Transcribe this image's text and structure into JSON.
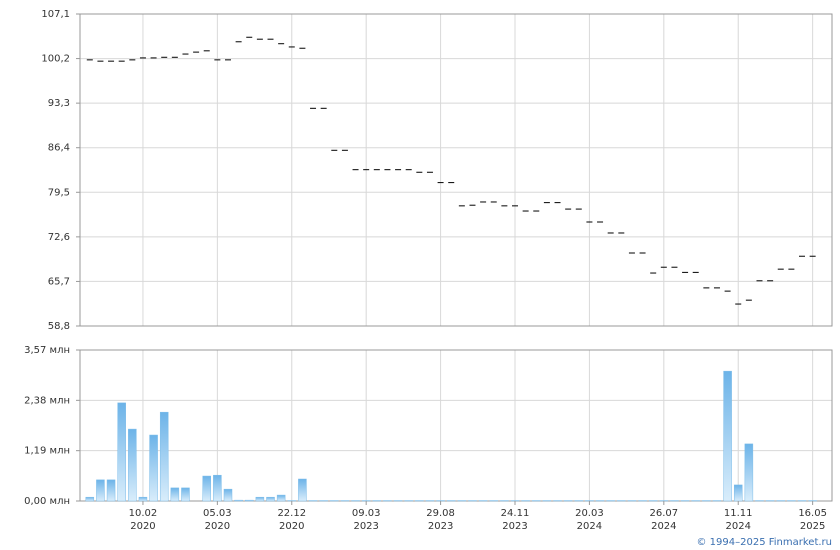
{
  "chart_data": [
    {
      "type": "dash",
      "color": "#000000",
      "values": [
        100.0,
        99.8,
        99.8,
        99.8,
        100.0,
        100.3,
        100.3,
        100.4,
        100.4,
        100.9,
        101.2,
        101.4,
        100.0,
        100.0,
        102.8,
        103.5,
        103.2,
        103.2,
        102.5,
        102.0,
        101.8,
        92.5,
        92.5,
        86.0,
        86.0,
        83.0,
        83.0,
        83.0,
        83.0,
        83.0,
        83.0,
        82.6,
        82.6,
        81.0,
        81.0,
        77.4,
        77.5,
        78.0,
        78.0,
        77.4,
        77.4,
        76.6,
        76.6,
        77.9,
        77.9,
        76.9,
        76.9,
        74.9,
        74.9,
        73.2,
        73.2,
        70.1,
        70.1,
        67.0,
        67.9,
        67.9,
        67.1,
        67.1,
        64.7,
        64.7,
        64.2,
        62.2,
        62.8,
        65.8,
        65.8,
        67.6,
        67.6,
        69.6,
        69.6
      ],
      "ylim": [
        58.8,
        107.1
      ],
      "yticks": [
        {
          "value": 58.8,
          "label": "58,8"
        },
        {
          "value": 65.7,
          "label": "65,7"
        },
        {
          "value": 72.6,
          "label": "72,6"
        },
        {
          "value": 79.5,
          "label": "79,5"
        },
        {
          "value": 86.4,
          "label": "86,4"
        },
        {
          "value": 93.3,
          "label": "93,3"
        },
        {
          "value": 100.2,
          "label": "100,2"
        },
        {
          "value": 107.1,
          "label": "107,1"
        }
      ],
      "grid": true
    },
    {
      "type": "bar",
      "color": "#7dbde9",
      "categories": [
        null,
        null,
        null,
        null,
        null,
        "10.02",
        null,
        null,
        null,
        null,
        null,
        null,
        "05.03",
        null,
        null,
        null,
        null,
        null,
        null,
        "22.12",
        null,
        null,
        null,
        null,
        null,
        null,
        "09.03",
        null,
        null,
        null,
        null,
        null,
        null,
        "29.08",
        null,
        null,
        null,
        null,
        null,
        null,
        "24.11",
        null,
        null,
        null,
        null,
        null,
        null,
        "20.03",
        null,
        null,
        null,
        null,
        null,
        null,
        "26.07",
        null,
        null,
        null,
        null,
        null,
        null,
        "11.11",
        null,
        null,
        null,
        null,
        null,
        null,
        "16.05"
      ],
      "category_years": [
        null,
        null,
        null,
        null,
        null,
        "2020",
        null,
        null,
        null,
        null,
        null,
        null,
        "2020",
        null,
        null,
        null,
        null,
        null,
        null,
        "2020",
        null,
        null,
        null,
        null,
        null,
        null,
        "2023",
        null,
        null,
        null,
        null,
        null,
        null,
        "2023",
        null,
        null,
        null,
        null,
        null,
        null,
        "2023",
        null,
        null,
        null,
        null,
        null,
        null,
        "2024",
        null,
        null,
        null,
        null,
        null,
        null,
        "2024",
        null,
        null,
        null,
        null,
        null,
        null,
        "2024",
        null,
        null,
        null,
        null,
        null,
        null,
        "2025"
      ],
      "values": [
        0.09,
        0.5,
        0.5,
        2.32,
        1.7,
        0.09,
        1.56,
        2.1,
        0.31,
        0.31,
        0.0,
        0.59,
        0.61,
        0.28,
        0.02,
        0.02,
        0.09,
        0.09,
        0.14,
        0.01,
        0.52,
        0.01,
        0.01,
        0.01,
        0.01,
        0.01,
        0.01,
        0.01,
        0.01,
        0.01,
        0.01,
        0.01,
        0.01,
        0.01,
        0.01,
        0.01,
        0.01,
        0.01,
        0.01,
        0.01,
        0.01,
        0.01,
        0.01,
        0.01,
        0.01,
        0.01,
        0.01,
        0.01,
        0.01,
        0.01,
        0.01,
        0.01,
        0.01,
        0.01,
        0.01,
        0.01,
        0.01,
        0.01,
        0.01,
        0.01,
        3.07,
        0.38,
        1.35,
        0.01,
        0.01,
        0.01,
        0.01,
        0.01,
        0.01
      ],
      "ylim": [
        0,
        3.57
      ],
      "yticks": [
        {
          "value": 0,
          "label": "0,00 млн"
        },
        {
          "value": 1.19,
          "label": "1,19 млн"
        },
        {
          "value": 2.38,
          "label": "2,38 млн"
        },
        {
          "value": 3.57,
          "label": "3,57 млн"
        }
      ],
      "grid": true
    }
  ],
  "footer": "© 1994–2025 Finmarket.ru"
}
